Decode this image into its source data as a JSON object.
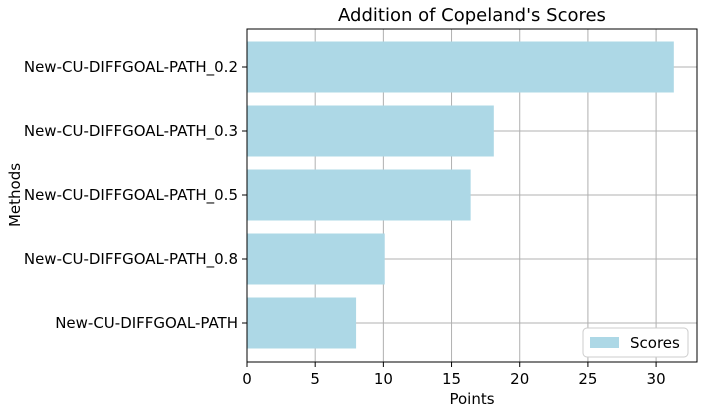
{
  "chart_data": {
    "type": "bar",
    "orientation": "horizontal",
    "title": "Addition of Copeland's Scores",
    "xlabel": "Points",
    "ylabel": "Methods",
    "categories": [
      "New-CU-DIFFGOAL-PATH",
      "New-CU-DIFFGOAL-PATH_0.8",
      "New-CU-DIFFGOAL-PATH_0.5",
      "New-CU-DIFFGOAL-PATH_0.3",
      "New-CU-DIFFGOAL-PATH_0.2"
    ],
    "series": [
      {
        "name": "Scores",
        "values": [
          8,
          10.1,
          16.4,
          18.1,
          31.3
        ],
        "color": "#add8e6"
      }
    ],
    "xlim": [
      0,
      33
    ],
    "xticks": [
      0,
      5,
      10,
      15,
      20,
      25,
      30
    ],
    "xtick_labels": [
      "0",
      "5",
      "10",
      "15",
      "20",
      "25",
      "30"
    ],
    "grid": true,
    "legend_position": "lower-right"
  }
}
